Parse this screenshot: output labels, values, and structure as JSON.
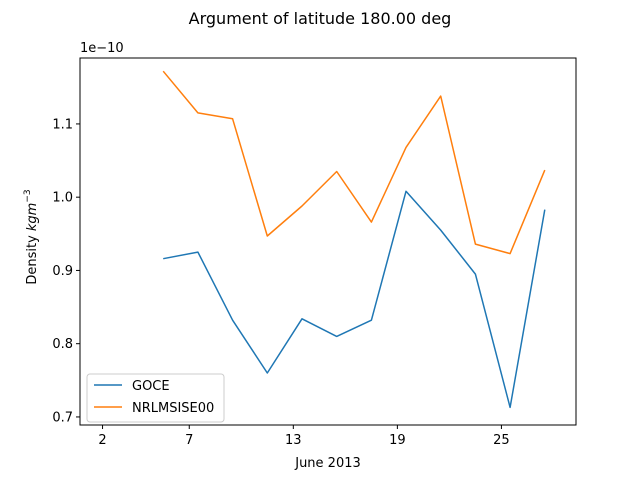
{
  "chart_data": {
    "type": "line",
    "title": "Argument of latitude 180.00 deg",
    "xlabel": "June 2013",
    "ylabel_text": "Density ",
    "ylabel_unit": "kgm",
    "ylabel_exp": "−3",
    "offset_text": "1e−10",
    "x_ticks": [
      2,
      7,
      13,
      19,
      25
    ],
    "x_tick_labels": [
      "2",
      "7",
      "13",
      "19",
      "25"
    ],
    "y_ticks": [
      0.7,
      0.8,
      0.9,
      1.0,
      1.1
    ],
    "y_tick_labels": [
      "0.7",
      "0.8",
      "0.9",
      "1.0",
      "1.1"
    ],
    "xlim": [
      0.7,
      29.3
    ],
    "ylim": [
      0.689,
      1.19
    ],
    "x": [
      5.5,
      7.5,
      9.5,
      11.5,
      13.5,
      15.5,
      17.5,
      19.5,
      21.5,
      23.5,
      25.5,
      27.5
    ],
    "series": [
      {
        "name": "GOCE",
        "color": "#1f77b4",
        "values": [
          0.916,
          0.925,
          0.832,
          0.76,
          0.834,
          0.81,
          0.832,
          1.008,
          0.955,
          0.895,
          0.713,
          0.983
        ]
      },
      {
        "name": "NRLMSISE00",
        "color": "#ff7f0e",
        "values": [
          1.172,
          1.115,
          1.107,
          0.947,
          0.988,
          1.035,
          0.966,
          1.068,
          1.138,
          0.936,
          0.923,
          1.037
        ]
      }
    ],
    "legend_position": "lower left",
    "grid": false
  }
}
